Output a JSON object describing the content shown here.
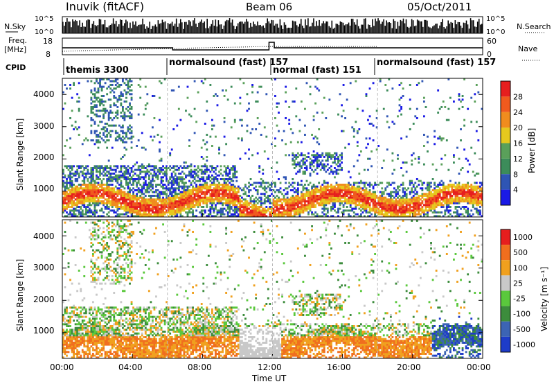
{
  "header": {
    "title": "Inuvik (fitACF)",
    "beam": "Beam 06",
    "date": "05/Oct/2011"
  },
  "top_panel": {
    "left_label": "N.Sky",
    "right_label": "N.Search",
    "left_ticks": [
      "10^5",
      "10^0"
    ],
    "right_ticks": [
      "10^5",
      "10^0"
    ]
  },
  "freq_panel": {
    "left_label_1": "Freq.",
    "left_label_2": "[MHz]",
    "right_label": "Nave",
    "left_ticks": [
      "18",
      "8"
    ],
    "right_ticks": [
      "60",
      "0"
    ]
  },
  "cpid": {
    "label": "CPID",
    "segments": [
      "themis 3300",
      "normalsound (fast) 157",
      "normal (fast) 151",
      "normalsound (fast) 157"
    ]
  },
  "x_axis": {
    "label": "Time UT",
    "ticks": [
      "00:00",
      "04:00",
      "08:00",
      "12:00",
      "16:00",
      "20:00",
      "00:00"
    ]
  },
  "chart_data": [
    {
      "type": "heatmap",
      "panel": "power",
      "ylabel": "Slant Range [km]",
      "yticks": [
        "1000",
        "2000",
        "3000",
        "4000"
      ],
      "ylim": [
        200,
        4500
      ],
      "colorbar_label": "Power [dB]",
      "colorbar_ticks": [
        "4",
        "8",
        "12",
        "16",
        "20",
        "24",
        "28"
      ],
      "colors": [
        "#1a1ae6",
        "#2f55b4",
        "#3c8c5a",
        "#5aa05a",
        "#e6c81e",
        "#f08c1e",
        "#f05a1e",
        "#e61e1e"
      ],
      "x_range_hours": [
        0,
        24
      ]
    },
    {
      "type": "heatmap",
      "panel": "velocity",
      "ylabel": "Slant Range [km]",
      "yticks": [
        "1000",
        "2000",
        "3000",
        "4000"
      ],
      "ylim": [
        200,
        4500
      ],
      "colorbar_label": "Velocity [m s⁻¹]",
      "colorbar_ticks": [
        "1000",
        "500",
        "100",
        "25",
        "-25",
        "-100",
        "-500",
        "-1000"
      ],
      "colors": [
        "#1e3cc8",
        "#3c64b4",
        "#3c8c3c",
        "#5ac83c",
        "#c8c8c8",
        "#f0a01e",
        "#f06e1e",
        "#e61e1e"
      ],
      "x_range_hours": [
        0,
        24
      ]
    }
  ]
}
